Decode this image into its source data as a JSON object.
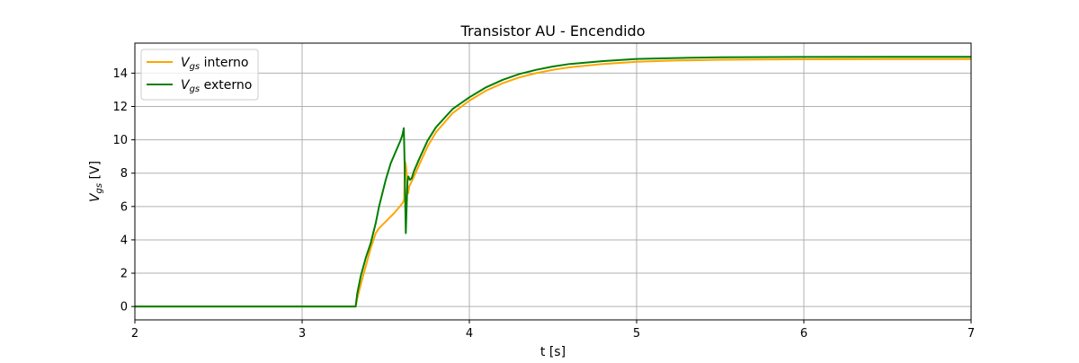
{
  "chart_data": {
    "type": "line",
    "title": "Transistor AU - Encendido",
    "xlabel": "t [s]",
    "ylabel": {
      "main": "V",
      "sub": "gs",
      "unit": " [V]"
    },
    "xlim": [
      2,
      7
    ],
    "ylim": [
      -0.8,
      15.8
    ],
    "xticks": [
      2,
      3,
      4,
      5,
      6,
      7
    ],
    "yticks": [
      0,
      2,
      4,
      6,
      8,
      10,
      12,
      14
    ],
    "grid": true,
    "legend_position": "upper-left",
    "series": [
      {
        "name": {
          "main": "V",
          "sub": "gs",
          "rest": " interno"
        },
        "color": "#ffa500",
        "points": [
          [
            2.0,
            0
          ],
          [
            3.0,
            0
          ],
          [
            3.32,
            0
          ],
          [
            3.33,
            0.5
          ],
          [
            3.35,
            1.3
          ],
          [
            3.38,
            2.4
          ],
          [
            3.41,
            3.5
          ],
          [
            3.44,
            4.4
          ],
          [
            3.46,
            4.7
          ],
          [
            3.5,
            5.1
          ],
          [
            3.55,
            5.6
          ],
          [
            3.58,
            5.95
          ],
          [
            3.6,
            6.2
          ],
          [
            3.61,
            6.4
          ],
          [
            3.615,
            8.7
          ],
          [
            3.62,
            8.5
          ],
          [
            3.625,
            8.0
          ],
          [
            3.63,
            7.2
          ],
          [
            3.635,
            6.8
          ],
          [
            3.64,
            7.2
          ],
          [
            3.66,
            7.6
          ],
          [
            3.7,
            8.5
          ],
          [
            3.75,
            9.6
          ],
          [
            3.8,
            10.45
          ],
          [
            3.9,
            11.6
          ],
          [
            4.0,
            12.35
          ],
          [
            4.1,
            12.95
          ],
          [
            4.2,
            13.4
          ],
          [
            4.3,
            13.75
          ],
          [
            4.4,
            14.0
          ],
          [
            4.5,
            14.2
          ],
          [
            4.6,
            14.35
          ],
          [
            4.8,
            14.55
          ],
          [
            5.0,
            14.68
          ],
          [
            5.2,
            14.75
          ],
          [
            5.5,
            14.8
          ],
          [
            6.0,
            14.83
          ],
          [
            6.5,
            14.84
          ],
          [
            7.0,
            14.84
          ]
        ]
      },
      {
        "name": {
          "main": "V",
          "sub": "gs",
          "rest": " externo"
        },
        "color": "#007f00",
        "points": [
          [
            2.0,
            0
          ],
          [
            3.0,
            0
          ],
          [
            3.32,
            0
          ],
          [
            3.33,
            0.8
          ],
          [
            3.35,
            1.8
          ],
          [
            3.38,
            2.9
          ],
          [
            3.41,
            3.8
          ],
          [
            3.44,
            5.0
          ],
          [
            3.46,
            6.0
          ],
          [
            3.5,
            7.6
          ],
          [
            3.53,
            8.6
          ],
          [
            3.56,
            9.3
          ],
          [
            3.59,
            10.0
          ],
          [
            3.6,
            10.3
          ],
          [
            3.608,
            10.7
          ],
          [
            3.613,
            8.5
          ],
          [
            3.617,
            6.0
          ],
          [
            3.62,
            4.4
          ],
          [
            3.625,
            6.0
          ],
          [
            3.63,
            7.5
          ],
          [
            3.635,
            7.8
          ],
          [
            3.645,
            7.6
          ],
          [
            3.655,
            7.7
          ],
          [
            3.67,
            8.15
          ],
          [
            3.7,
            8.85
          ],
          [
            3.75,
            9.95
          ],
          [
            3.8,
            10.75
          ],
          [
            3.9,
            11.85
          ],
          [
            4.0,
            12.55
          ],
          [
            4.1,
            13.15
          ],
          [
            4.2,
            13.6
          ],
          [
            4.3,
            13.95
          ],
          [
            4.4,
            14.2
          ],
          [
            4.5,
            14.4
          ],
          [
            4.6,
            14.55
          ],
          [
            4.8,
            14.72
          ],
          [
            5.0,
            14.85
          ],
          [
            5.2,
            14.9
          ],
          [
            5.5,
            14.95
          ],
          [
            6.0,
            14.97
          ],
          [
            6.5,
            14.98
          ],
          [
            7.0,
            14.98
          ]
        ]
      }
    ]
  }
}
